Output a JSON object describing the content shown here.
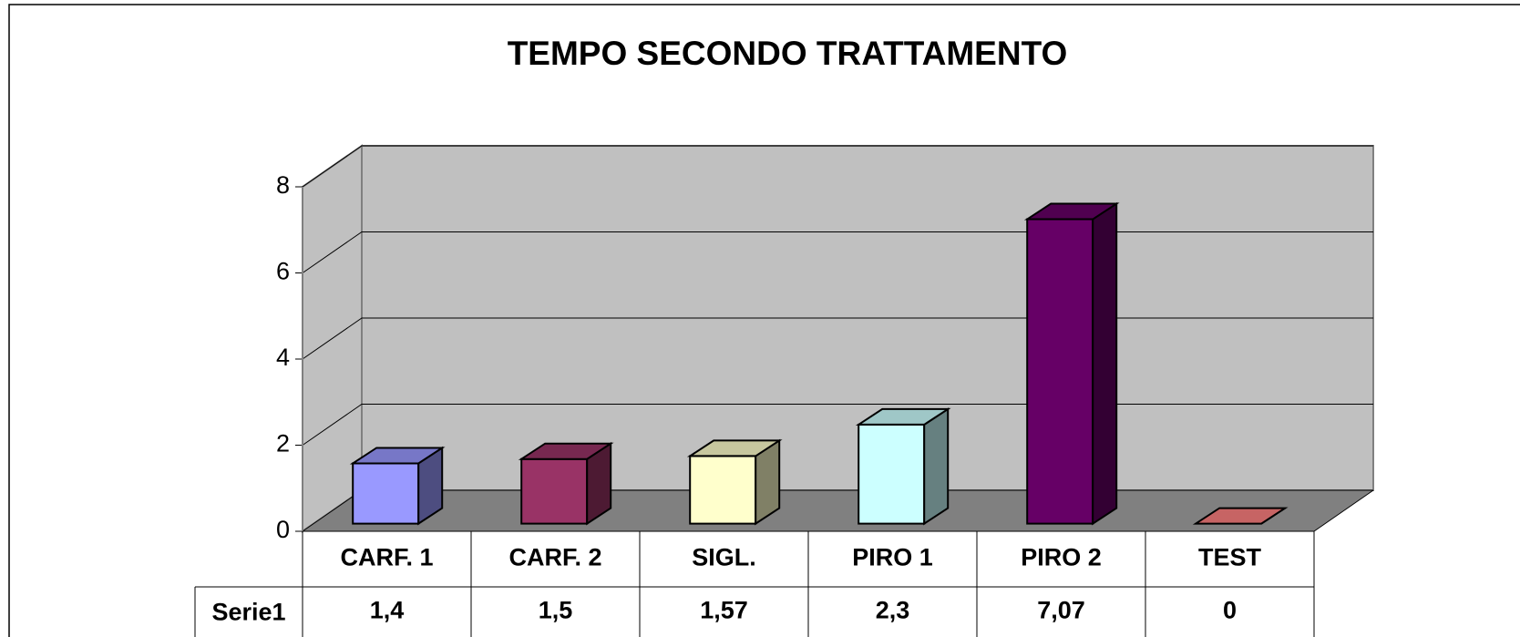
{
  "chart_data": {
    "type": "bar3d",
    "title": "TEMPO SECONDO TRATTAMENTO",
    "categories": [
      "CARF. 1",
      "CARF. 2",
      "SIGL.",
      "PIRO 1",
      "PIRO 2",
      "TEST"
    ],
    "series": [
      {
        "name": "Serie1",
        "values": [
          1.4,
          1.5,
          1.57,
          2.3,
          7.07,
          0
        ],
        "value_labels": [
          "1,4",
          "1,5",
          "1,57",
          "2,3",
          "7,07",
          "0"
        ],
        "colors": [
          "#9999ff",
          "#993366",
          "#ffffcc",
          "#ccffff",
          "#660066",
          "#ff8080"
        ]
      }
    ],
    "ylim": [
      0,
      8
    ],
    "yticks": [
      0,
      2,
      4,
      6,
      8
    ],
    "grid": true
  }
}
